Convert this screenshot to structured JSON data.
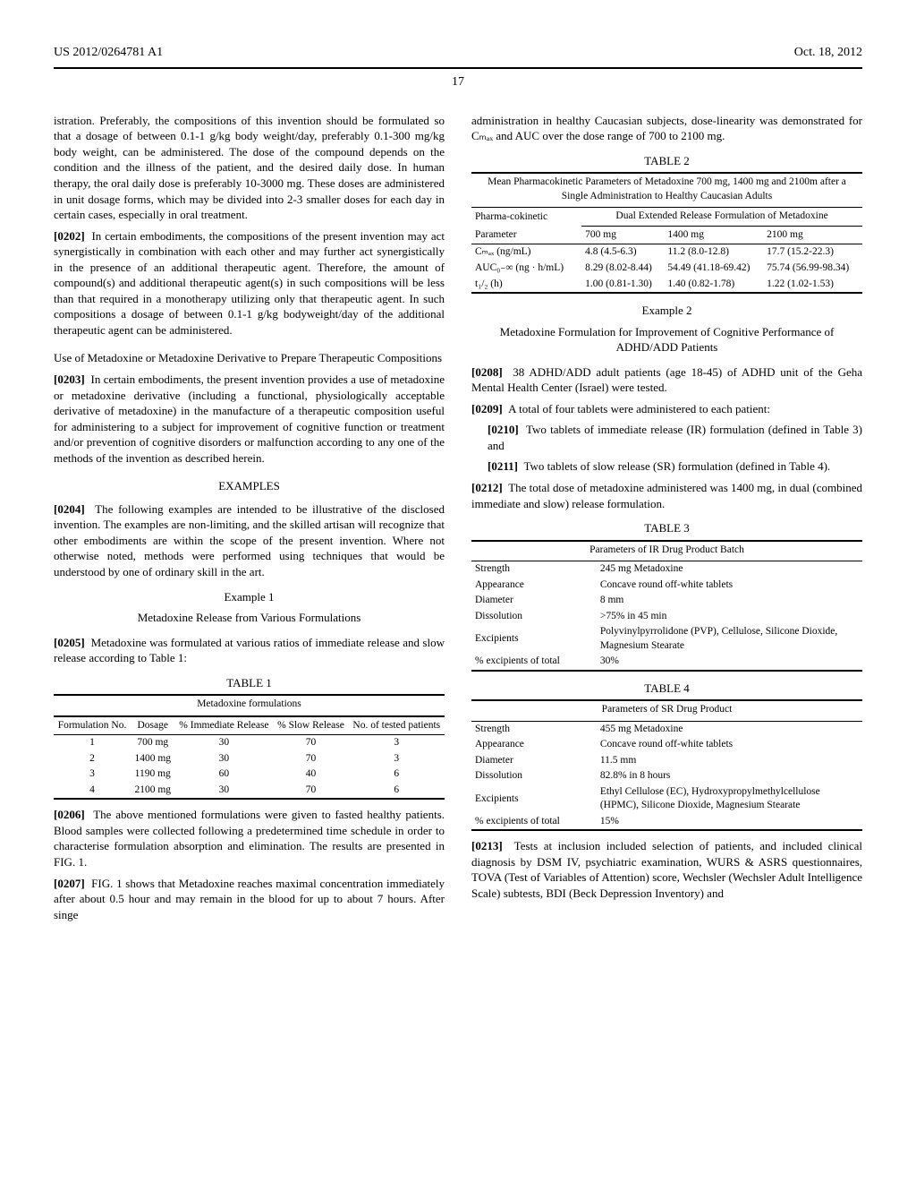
{
  "header": {
    "pub_number": "US 2012/0264781 A1",
    "pub_date": "Oct. 18, 2012",
    "page_number": "17"
  },
  "left": {
    "p0201_cont": "istration. Preferably, the compositions of this invention should be formulated so that a dosage of between 0.1-1 g/kg body weight/day, preferably 0.1-300 mg/kg body weight, can be administered. The dose of the compound depends on the condition and the illness of the patient, and the desired daily dose. In human therapy, the oral daily dose is preferably 10-3000 mg. These doses are administered in unit dosage forms, which may be divided into 2-3 smaller doses for each day in certain cases, especially in oral treatment.",
    "p0202_num": "[0202]",
    "p0202": "In certain embodiments, the compositions of the present invention may act synergistically in combination with each other and may further act synergistically in the presence of an additional therapeutic agent. Therefore, the amount of compound(s) and additional therapeutic agent(s) in such compositions will be less than that required in a monotherapy utilizing only that therapeutic agent. In such compositions a dosage of between 0.1-1 g/kg bodyweight/day of the additional therapeutic agent can be administered.",
    "use_head": "Use of Metadoxine or Metadoxine Derivative to Prepare Therapeutic Compositions",
    "p0203_num": "[0203]",
    "p0203": "In certain embodiments, the present invention provides a use of metadoxine or metadoxine derivative (including a functional, physiologically acceptable derivative of metadoxine) in the manufacture of a therapeutic composition useful for administering to a subject for improvement of cognitive function or treatment and/or prevention of cognitive disorders or malfunction according to any one of the methods of the invention as described herein.",
    "examples_head": "EXAMPLES",
    "p0204_num": "[0204]",
    "p0204": "The following examples are intended to be illustrative of the disclosed invention. The examples are non-limiting, and the skilled artisan will recognize that other embodiments are within the scope of the present invention. Where not otherwise noted, methods were performed using techniques that would be understood by one of ordinary skill in the art.",
    "ex1_num": "Example 1",
    "ex1_title": "Metadoxine Release from Various Formulations",
    "p0205_num": "[0205]",
    "p0205": "Metadoxine was formulated at various ratios of immediate release and slow release according to Table 1:",
    "table1": {
      "label": "TABLE 1",
      "caption": "Metadoxine formulations",
      "headers": [
        "Formulation No.",
        "Dosage",
        "% Immediate Release",
        "% Slow Release",
        "No. of tested patients"
      ],
      "rows": [
        [
          "1",
          "700 mg",
          "30",
          "70",
          "3"
        ],
        [
          "2",
          "1400 mg",
          "30",
          "70",
          "3"
        ],
        [
          "3",
          "1190 mg",
          "60",
          "40",
          "6"
        ],
        [
          "4",
          "2100 mg",
          "30",
          "70",
          "6"
        ]
      ]
    },
    "p0206_num": "[0206]",
    "p0206": "The above mentioned formulations were given to fasted healthy patients. Blood samples were collected following a predetermined time schedule in order to characterise formulation absorption and elimination. The results are presented in FIG. 1.",
    "p0207_num": "[0207]",
    "p0207": "FIG. 1 shows that Metadoxine reaches maximal concentration immediately after about 0.5 hour and may remain in the blood for up to about 7 hours. After singe"
  },
  "right": {
    "p0207_cont": "administration in healthy Caucasian subjects, dose-linearity was demonstrated for Cₘₐₓ and AUC over the dose range of 700 to 2100 mg.",
    "table2": {
      "label": "TABLE 2",
      "caption": "Mean Pharmacokinetic Parameters of Metadoxine 700 mg, 1400 mg and 2100m after a Single Administration to Healthy Caucasian Adults",
      "pk_label": "Pharma-cokinetic",
      "param_label": "Parameter",
      "dual_label": "Dual Extended Release Formulation of Metadoxine",
      "doses": [
        "700 mg",
        "1400 mg",
        "2100 mg"
      ],
      "rows": [
        [
          "Cₘₐₓ (ng/mL)",
          "4.8 (4.5-6.3)",
          "11.2 (8.0-12.8)",
          "17.7 (15.2-22.3)"
        ],
        [
          "AUC₀₋∞ (ng · h/mL)",
          "8.29 (8.02-8.44)",
          "54.49 (41.18-69.42)",
          "75.74 (56.99-98.34)"
        ],
        [
          "t₁/₂ (h)",
          "1.00 (0.81-1.30)",
          "1.40 (0.82-1.78)",
          "1.22 (1.02-1.53)"
        ]
      ]
    },
    "ex2_num": "Example 2",
    "ex2_title": "Metadoxine Formulation for Improvement of Cognitive Performance of ADHD/ADD Patients",
    "p0208_num": "[0208]",
    "p0208": "38 ADHD/ADD adult patients (age 18-45) of ADHD unit of the Geha Mental Health Center (Israel) were tested.",
    "p0209_num": "[0209]",
    "p0209": "A total of four tablets were administered to each patient:",
    "p0210_num": "[0210]",
    "p0210": "Two tablets of immediate release (IR) formulation (defined in Table 3) and",
    "p0211_num": "[0211]",
    "p0211": "Two tablets of slow release (SR) formulation (defined in Table 4).",
    "p0212_num": "[0212]",
    "p0212": "The total dose of metadoxine administered was 1400 mg, in dual (combined immediate and slow) release formulation.",
    "table3": {
      "label": "TABLE 3",
      "caption": "Parameters of IR Drug Product Batch",
      "rows": [
        [
          "Strength",
          "245 mg Metadoxine"
        ],
        [
          "Appearance",
          "Concave round off-white tablets"
        ],
        [
          "Diameter",
          "8 mm"
        ],
        [
          "Dissolution",
          ">75% in 45 min"
        ],
        [
          "Excipients",
          "Polyvinylpyrrolidone (PVP), Cellulose, Silicone Dioxide, Magnesium Stearate"
        ],
        [
          "% excipients of total",
          "30%"
        ]
      ]
    },
    "table4": {
      "label": "TABLE 4",
      "caption": "Parameters of SR Drug Product",
      "rows": [
        [
          "Strength",
          "455 mg Metadoxine"
        ],
        [
          "Appearance",
          "Concave round off-white tablets"
        ],
        [
          "Diameter",
          "11.5 mm"
        ],
        [
          "Dissolution",
          "82.8% in 8 hours"
        ],
        [
          "Excipients",
          "Ethyl Cellulose (EC), Hydroxypropylmethylcellulose (HPMC), Silicone Dioxide, Magnesium Stearate"
        ],
        [
          "% excipients of total",
          "15%"
        ]
      ]
    },
    "p0213_num": "[0213]",
    "p0213": "Tests at inclusion included selection of patients, and included clinical diagnosis by DSM IV, psychiatric examination, WURS & ASRS questionnaires, TOVA (Test of Variables of Attention) score, Wechsler (Wechsler Adult Intelligence Scale) subtests, BDI (Beck Depression Inventory) and"
  }
}
